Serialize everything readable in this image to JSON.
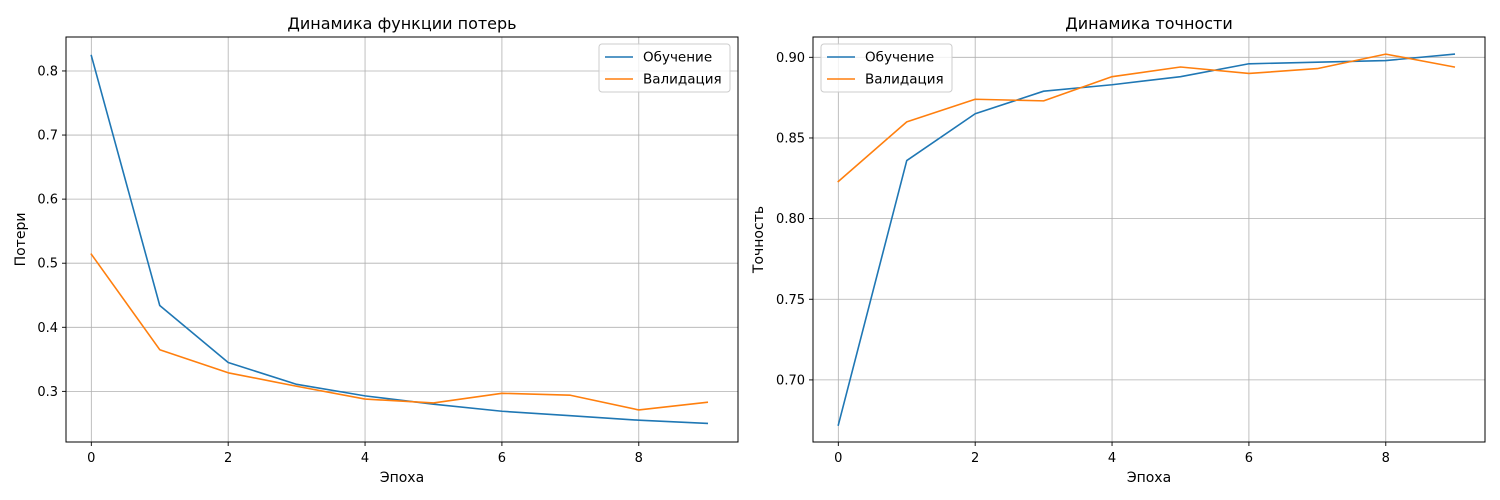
{
  "chart_data": [
    {
      "type": "line",
      "title": "Динамика функции потерь",
      "xlabel": "Эпоха",
      "ylabel": "Потери",
      "x": [
        0,
        1,
        2,
        3,
        4,
        5,
        6,
        7,
        8,
        9
      ],
      "xlim": [
        -0.37,
        9.45
      ],
      "ylim": [
        0.221,
        0.853
      ],
      "xticks": [
        0,
        2,
        4,
        6,
        8
      ],
      "yticks": [
        0.3,
        0.4,
        0.5,
        0.6,
        0.7,
        0.8
      ],
      "ytick_labels": [
        "0.3",
        "0.4",
        "0.5",
        "0.6",
        "0.7",
        "0.8"
      ],
      "grid": true,
      "legend_position": "upper right",
      "series": [
        {
          "name": "Обучение",
          "color": "#1f77b4",
          "values": [
            0.824,
            0.434,
            0.345,
            0.311,
            0.293,
            0.28,
            0.269,
            0.262,
            0.255,
            0.25
          ]
        },
        {
          "name": "Валидация",
          "color": "#ff7f0e",
          "values": [
            0.514,
            0.365,
            0.329,
            0.308,
            0.288,
            0.282,
            0.297,
            0.294,
            0.271,
            0.283
          ]
        }
      ]
    },
    {
      "type": "line",
      "title": "Динамика точности",
      "xlabel": "Эпоха",
      "ylabel": "Точность",
      "x": [
        0,
        1,
        2,
        3,
        4,
        5,
        6,
        7,
        8,
        9
      ],
      "xlim": [
        -0.37,
        9.45
      ],
      "ylim": [
        0.6615,
        0.9126
      ],
      "xticks": [
        0,
        2,
        4,
        6,
        8
      ],
      "yticks": [
        0.7,
        0.75,
        0.8,
        0.85,
        0.9
      ],
      "ytick_labels": [
        "0.70",
        "0.75",
        "0.80",
        "0.85",
        "0.90"
      ],
      "grid": true,
      "legend_position": "upper left",
      "series": [
        {
          "name": "Обучение",
          "color": "#1f77b4",
          "values": [
            0.672,
            0.836,
            0.865,
            0.879,
            0.883,
            0.888,
            0.896,
            0.897,
            0.898,
            0.902
          ]
        },
        {
          "name": "Валидация",
          "color": "#ff7f0e",
          "values": [
            0.823,
            0.86,
            0.874,
            0.873,
            0.888,
            0.894,
            0.89,
            0.893,
            0.902,
            0.894
          ]
        }
      ]
    }
  ]
}
